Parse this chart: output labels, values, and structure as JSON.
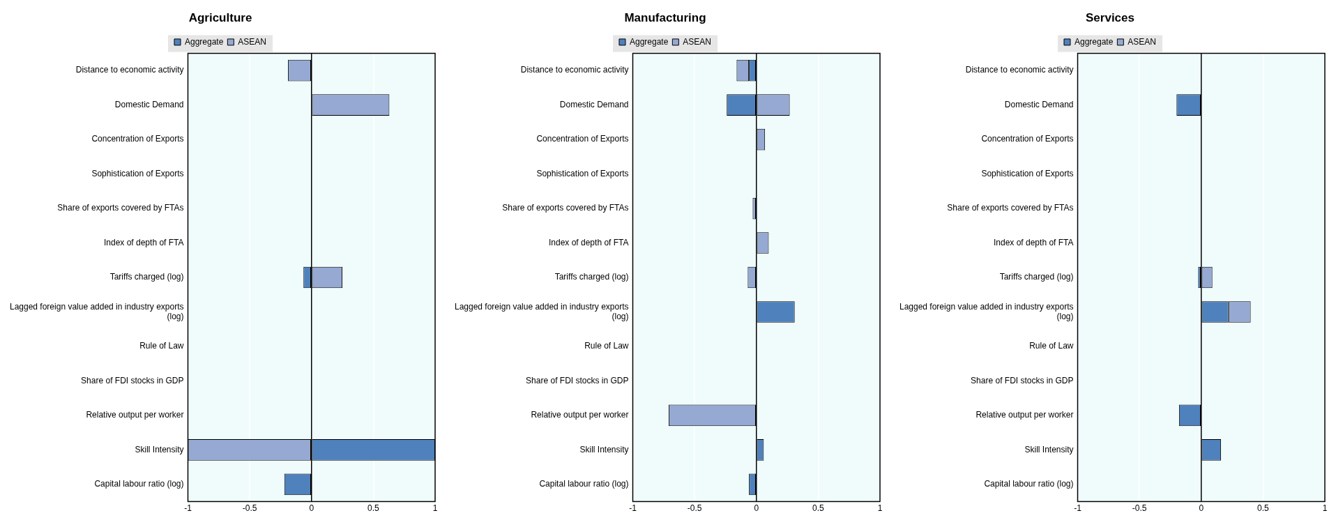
{
  "chart_data": [
    {
      "type": "bar",
      "title": "Agriculture",
      "orientation": "horizontal",
      "stacked": true,
      "grid": "x",
      "legend": "top",
      "xlim": [
        -1,
        1
      ],
      "xticks": [
        -1,
        -0.5,
        0,
        0.5,
        1
      ],
      "categories": [
        "Distance to economic activity",
        "Domestic Demand",
        "Concentration of Exports",
        "Sophistication of Exports",
        "Share of exports covered by FTAs",
        "Index of depth of FTA",
        "Tariffs charged (log)",
        "Lagged foreign value added in industry exports (log)",
        "Rule of Law",
        "Share of FDI stocks in GDP",
        "Relative output per worker",
        "Skill Intensity",
        "Capital labour ratio (log)"
      ],
      "series": [
        {
          "name": "Aggregate",
          "color": "#4f81bd",
          "values": [
            null,
            null,
            null,
            null,
            null,
            null,
            -0.065,
            null,
            null,
            null,
            null,
            1,
            -0.22
          ]
        },
        {
          "name": "ASEAN",
          "color": "#95a9d2",
          "values": [
            -0.19,
            0.63,
            null,
            null,
            null,
            null,
            0.25,
            null,
            null,
            null,
            null,
            -1,
            null
          ]
        }
      ]
    },
    {
      "type": "bar",
      "title": "Manufacturing",
      "orientation": "horizontal",
      "stacked": true,
      "grid": "x",
      "legend": "top",
      "xlim": [
        -1,
        1
      ],
      "xticks": [
        -1,
        -0.5,
        0,
        0.5,
        1
      ],
      "categories": [
        "Distance to economic activity",
        "Domestic Demand",
        "Concentration of Exports",
        "Sophistication of Exports",
        "Share of exports covered by FTAs",
        "Index of depth of FTA",
        "Tariffs charged (log)",
        "Lagged foreign value added in industry exports (log)",
        "Rule of Law",
        "Share of FDI stocks in GDP",
        "Relative output per worker",
        "Skill Intensity",
        "Capital labour ratio (log)"
      ],
      "series": [
        {
          "name": "Aggregate",
          "color": "#4f81bd",
          "values": [
            -0.06,
            -0.24,
            null,
            null,
            null,
            null,
            null,
            0.31,
            null,
            null,
            null,
            0.06,
            -0.06
          ]
        },
        {
          "name": "ASEAN",
          "color": "#95a9d2",
          "values": [
            -0.1,
            0.27,
            0.07,
            null,
            -0.03,
            0.1,
            -0.07,
            null,
            null,
            null,
            -0.71,
            null,
            null
          ]
        }
      ]
    },
    {
      "type": "bar",
      "title": "Services",
      "orientation": "horizontal",
      "stacked": true,
      "grid": "x",
      "legend": "top",
      "xlim": [
        -1,
        1
      ],
      "xticks": [
        -1,
        -0.5,
        0,
        0.5,
        1
      ],
      "categories": [
        "Distance to economic activity",
        "Domestic Demand",
        "Concentration of Exports",
        "Sophistication of Exports",
        "Share of exports covered by FTAs",
        "Index of depth of FTA",
        "Tariffs charged (log)",
        "Lagged foreign value added in industry exports (log)",
        "Rule of Law",
        "Share of FDI stocks in GDP",
        "Relative output per worker",
        "Skill Intensity",
        "Capital labour ratio (log)"
      ],
      "series": [
        {
          "name": "Aggregate",
          "color": "#4f81bd",
          "values": [
            null,
            -0.2,
            null,
            null,
            null,
            null,
            -0.025,
            0.22,
            null,
            null,
            -0.18,
            0.16,
            null
          ]
        },
        {
          "name": "ASEAN",
          "color": "#95a9d2",
          "values": [
            null,
            null,
            null,
            null,
            null,
            null,
            0.09,
            0.18,
            null,
            null,
            null,
            null,
            null
          ]
        }
      ]
    }
  ]
}
